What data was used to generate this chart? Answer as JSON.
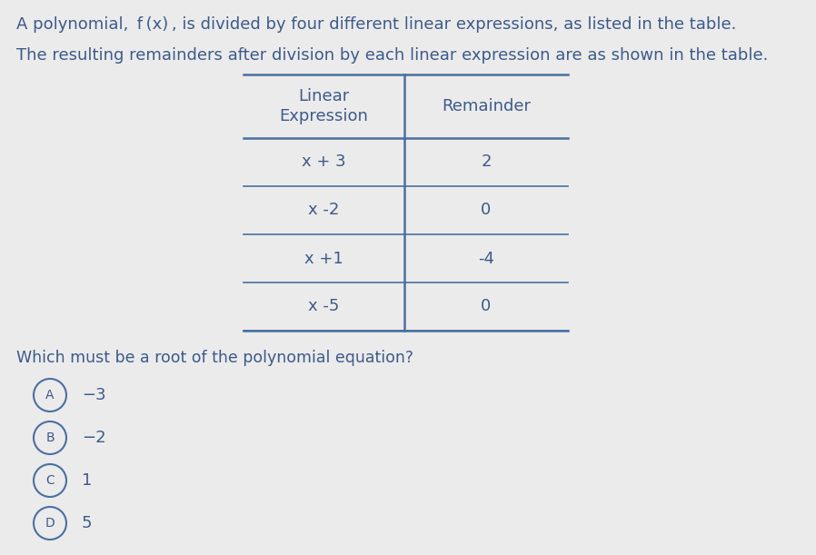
{
  "title_line1": "A polynomial,  f (x) , is divided by four different linear expressions, as listed in the table.",
  "title_line2": "The resulting remainders after division by each linear expression are as shown in the table.",
  "col_header1": "Linear\nExpression",
  "col_header2": "Remainder",
  "table_rows": [
    {
      "expression": "x + 3",
      "remainder": "2"
    },
    {
      "expression": "x -2",
      "remainder": "0"
    },
    {
      "expression": "x +1",
      "remainder": "-4"
    },
    {
      "expression": "x -5",
      "remainder": "0"
    }
  ],
  "question": "Which must be a root of the polynomial equation?",
  "choices": [
    {
      "label": "A",
      "text": "−3"
    },
    {
      "label": "B",
      "text": "−2"
    },
    {
      "label": "C",
      "text": "1"
    },
    {
      "label": "D",
      "text": "5"
    }
  ],
  "text_color": "#3d5a8a",
  "bg_color": "#ebebeb",
  "table_line_color": "#4a6fa0",
  "circle_color": "#4a6fa0",
  "font_size_title": 13,
  "font_size_header": 13,
  "font_size_table": 13,
  "font_size_question": 12.5,
  "font_size_choices": 13,
  "fig_width": 8.98,
  "fig_height": 6.11
}
